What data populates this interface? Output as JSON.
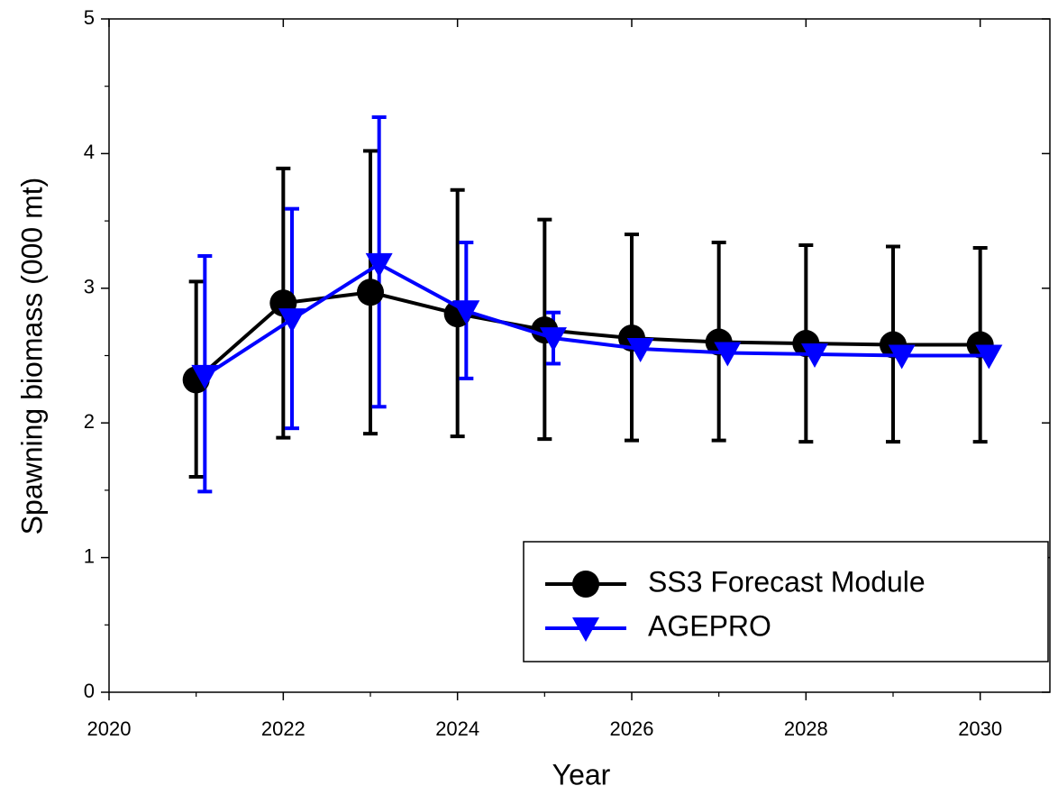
{
  "chart_data": {
    "type": "line",
    "xlabel": "Year",
    "ylabel": "Spawning biomass (000 mt)",
    "xlim": [
      2020,
      2030.8
    ],
    "xticks": [
      2020,
      2022,
      2024,
      2026,
      2028,
      2030
    ],
    "ylim": [
      0,
      5
    ],
    "yticks": [
      0,
      1,
      2,
      3,
      4,
      5
    ],
    "legend": "lower right",
    "series": [
      {
        "name": "SS3 Forecast Module",
        "color": "#000000",
        "marker": "circle",
        "x": [
          2021,
          2022,
          2023,
          2024,
          2025,
          2026,
          2027,
          2028,
          2029,
          2030
        ],
        "values": [
          2.32,
          2.89,
          2.97,
          2.81,
          2.69,
          2.63,
          2.6,
          2.59,
          2.58,
          2.58
        ],
        "lower": [
          1.6,
          1.89,
          1.92,
          1.9,
          1.88,
          1.87,
          1.87,
          1.86,
          1.86,
          1.86
        ],
        "upper": [
          3.05,
          3.89,
          4.02,
          3.73,
          3.51,
          3.4,
          3.34,
          3.32,
          3.31,
          3.3
        ]
      },
      {
        "name": "AGEPRO",
        "color": "#0000ff",
        "marker": "triangle-down",
        "x": [
          2021.1,
          2022.1,
          2023.1,
          2024.1,
          2025.1,
          2026.1,
          2027.1,
          2028.1,
          2029.1,
          2030.1
        ],
        "values": [
          2.35,
          2.77,
          3.18,
          2.83,
          2.63,
          2.55,
          2.52,
          2.51,
          2.5,
          2.5
        ],
        "lower": [
          1.49,
          1.96,
          2.12,
          2.33,
          2.44,
          null,
          null,
          null,
          null,
          null
        ],
        "upper": [
          3.24,
          3.59,
          4.27,
          3.34,
          2.82,
          null,
          null,
          null,
          null,
          null
        ]
      }
    ]
  }
}
